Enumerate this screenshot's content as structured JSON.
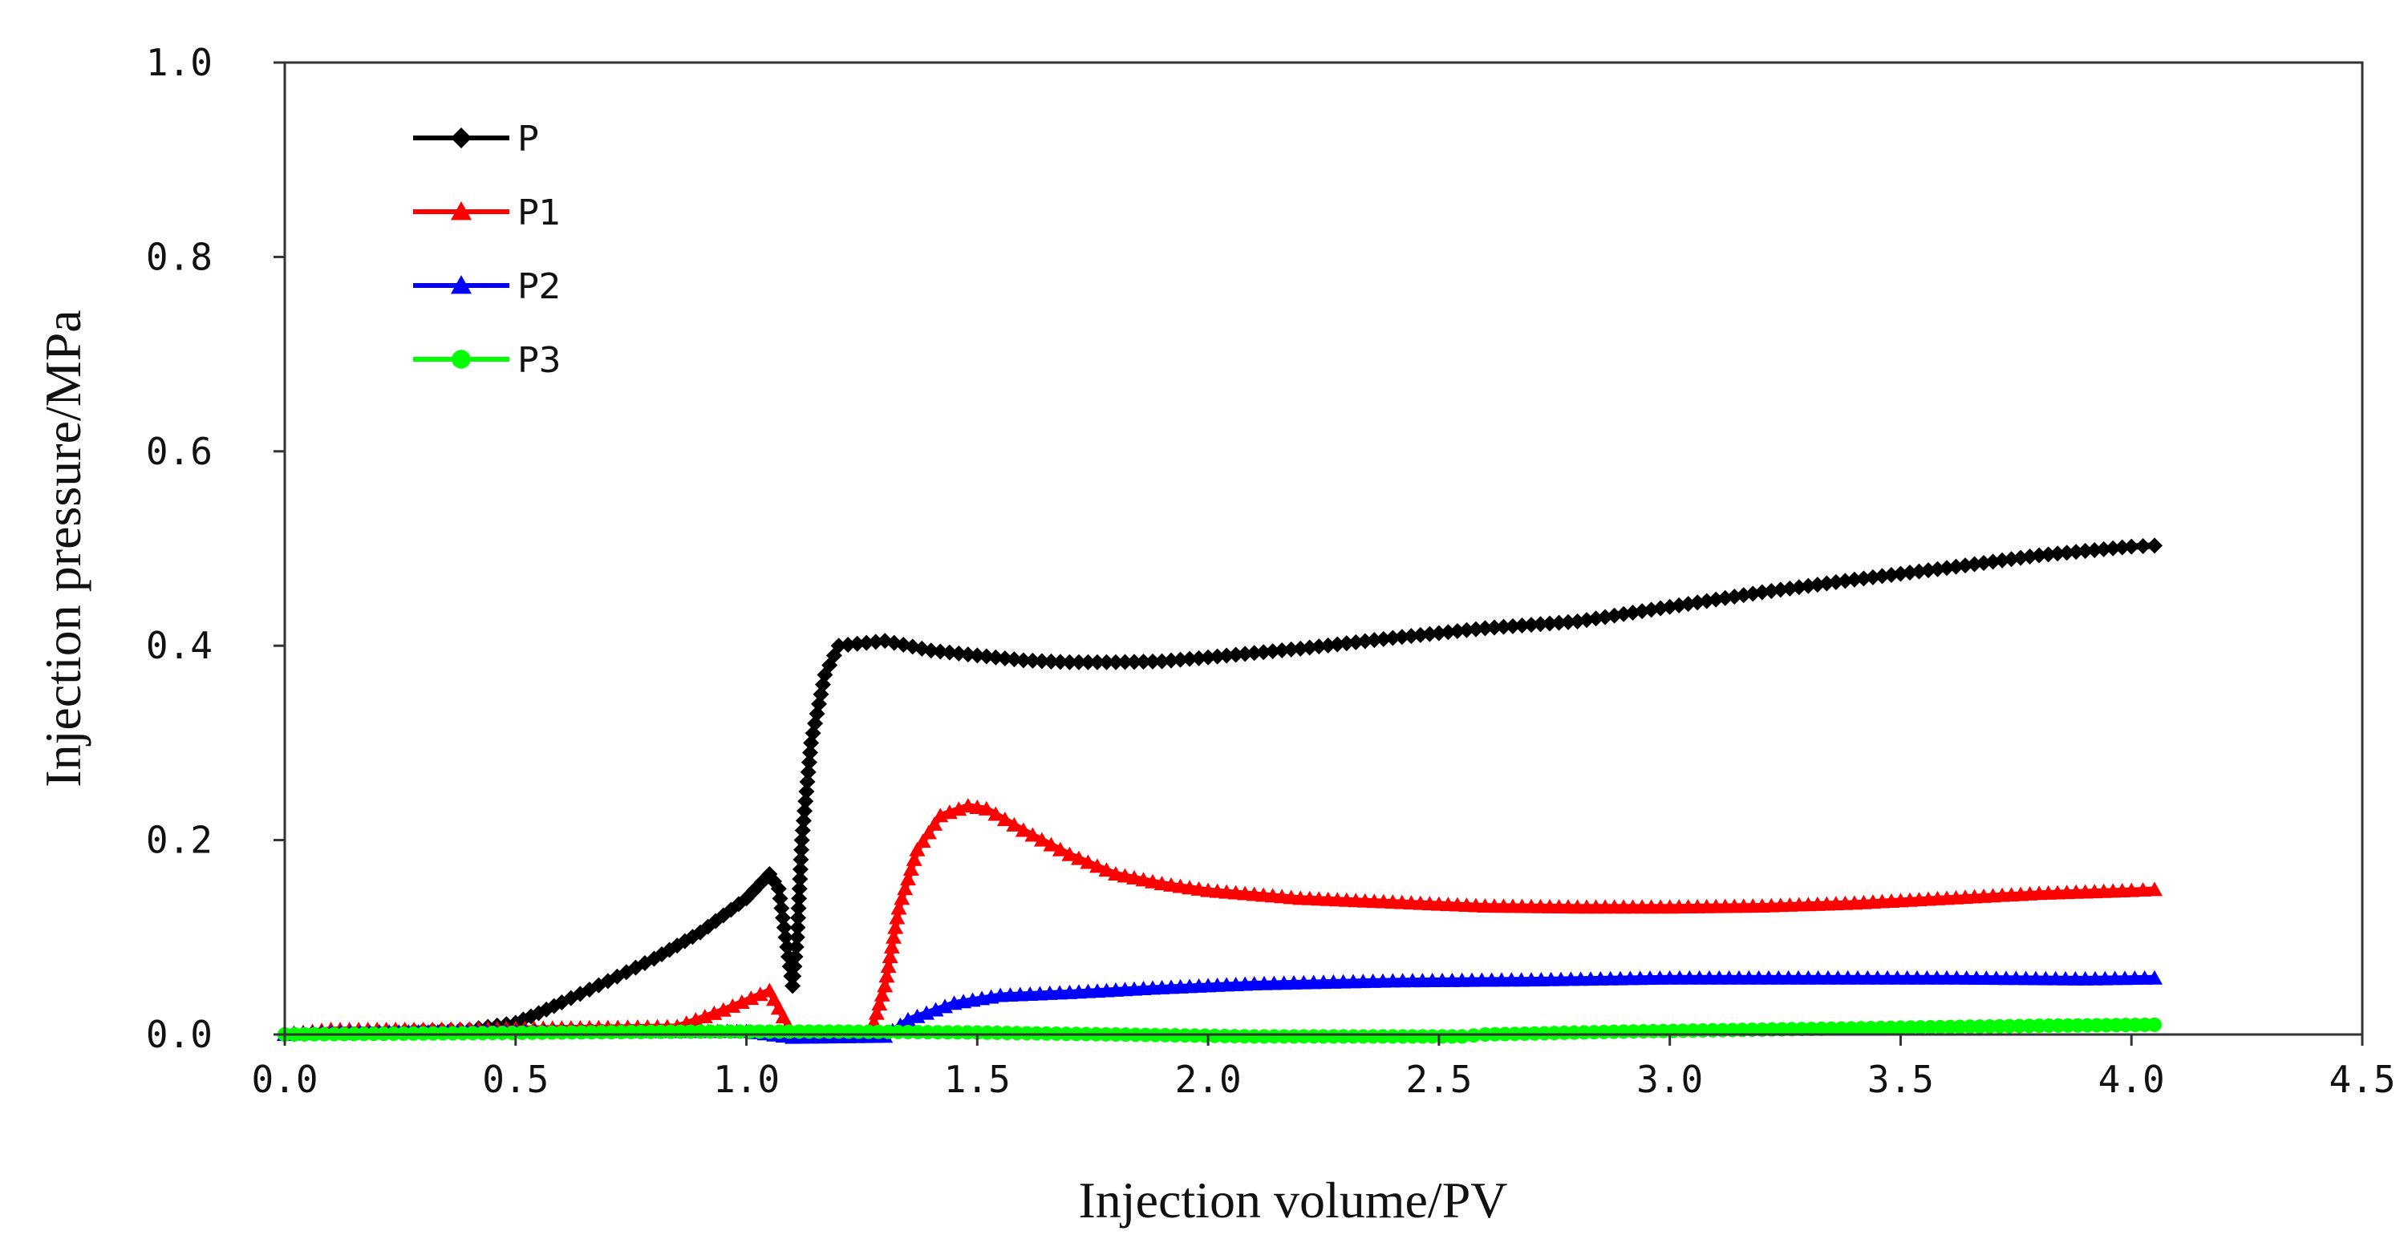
{
  "chart_data": {
    "type": "line",
    "title": "",
    "xlabel": "Injection volume/PV",
    "ylabel": "Injection pressure/MPa",
    "xlim": [
      0,
      4.5
    ],
    "ylim": [
      0,
      1.0
    ],
    "x_ticks": [
      "0.0",
      "0.5",
      "1.0",
      "1.5",
      "2.0",
      "2.5",
      "3.0",
      "3.5",
      "4.0",
      "4.5"
    ],
    "y_ticks": [
      "0.0",
      "0.2",
      "0.4",
      "0.6",
      "0.8",
      "1.0"
    ],
    "grid": false,
    "legend_position": "top-left",
    "series": [
      {
        "name": "P",
        "color": "#000000",
        "marker": "diamond",
        "points": [
          [
            0.0,
            0.0
          ],
          [
            0.1,
            0.002
          ],
          [
            0.2,
            0.003
          ],
          [
            0.3,
            0.004
          ],
          [
            0.4,
            0.005
          ],
          [
            0.5,
            0.012
          ],
          [
            0.55,
            0.022
          ],
          [
            0.6,
            0.033
          ],
          [
            0.7,
            0.055
          ],
          [
            0.8,
            0.078
          ],
          [
            0.9,
            0.105
          ],
          [
            1.0,
            0.14
          ],
          [
            1.05,
            0.165
          ],
          [
            1.07,
            0.15
          ],
          [
            1.1,
            0.05
          ],
          [
            1.11,
            0.1
          ],
          [
            1.12,
            0.2
          ],
          [
            1.14,
            0.3
          ],
          [
            1.17,
            0.37
          ],
          [
            1.2,
            0.4
          ],
          [
            1.3,
            0.405
          ],
          [
            1.4,
            0.395
          ],
          [
            1.5,
            0.39
          ],
          [
            1.6,
            0.385
          ],
          [
            1.7,
            0.383
          ],
          [
            1.8,
            0.383
          ],
          [
            1.9,
            0.384
          ],
          [
            2.0,
            0.388
          ],
          [
            2.2,
            0.397
          ],
          [
            2.4,
            0.408
          ],
          [
            2.6,
            0.418
          ],
          [
            2.8,
            0.425
          ],
          [
            3.0,
            0.44
          ],
          [
            3.2,
            0.455
          ],
          [
            3.4,
            0.468
          ],
          [
            3.6,
            0.48
          ],
          [
            3.8,
            0.493
          ],
          [
            4.0,
            0.502
          ],
          [
            4.05,
            0.503
          ]
        ]
      },
      {
        "name": "P1",
        "color": "#ff0000",
        "marker": "triangle",
        "points": [
          [
            0.0,
            0.0
          ],
          [
            0.1,
            0.005
          ],
          [
            0.3,
            0.005
          ],
          [
            0.5,
            0.006
          ],
          [
            0.7,
            0.007
          ],
          [
            0.85,
            0.008
          ],
          [
            0.95,
            0.025
          ],
          [
            1.05,
            0.045
          ],
          [
            1.1,
            0.0
          ],
          [
            1.2,
            0.0
          ],
          [
            1.27,
            0.003
          ],
          [
            1.3,
            0.05
          ],
          [
            1.33,
            0.13
          ],
          [
            1.37,
            0.19
          ],
          [
            1.42,
            0.225
          ],
          [
            1.48,
            0.235
          ],
          [
            1.52,
            0.232
          ],
          [
            1.6,
            0.21
          ],
          [
            1.7,
            0.185
          ],
          [
            1.8,
            0.165
          ],
          [
            1.9,
            0.155
          ],
          [
            2.0,
            0.148
          ],
          [
            2.2,
            0.14
          ],
          [
            2.4,
            0.136
          ],
          [
            2.6,
            0.132
          ],
          [
            2.8,
            0.131
          ],
          [
            3.0,
            0.131
          ],
          [
            3.2,
            0.132
          ],
          [
            3.4,
            0.135
          ],
          [
            3.6,
            0.14
          ],
          [
            3.8,
            0.145
          ],
          [
            4.0,
            0.148
          ],
          [
            4.05,
            0.149
          ]
        ]
      },
      {
        "name": "P2",
        "color": "#0000ff",
        "marker": "triangle",
        "points": [
          [
            0.0,
            0.0
          ],
          [
            0.1,
            0.002
          ],
          [
            0.5,
            0.003
          ],
          [
            1.0,
            0.003
          ],
          [
            1.1,
            -0.003
          ],
          [
            1.3,
            -0.002
          ],
          [
            1.35,
            0.015
          ],
          [
            1.45,
            0.032
          ],
          [
            1.55,
            0.04
          ],
          [
            1.7,
            0.043
          ],
          [
            1.9,
            0.048
          ],
          [
            2.1,
            0.052
          ],
          [
            2.4,
            0.055
          ],
          [
            2.7,
            0.056
          ],
          [
            3.0,
            0.058
          ],
          [
            3.3,
            0.058
          ],
          [
            3.6,
            0.058
          ],
          [
            3.9,
            0.057
          ],
          [
            4.05,
            0.058
          ]
        ]
      },
      {
        "name": "P3",
        "color": "#00ff00",
        "marker": "circle",
        "points": [
          [
            0.0,
            0.0
          ],
          [
            0.3,
            0.001
          ],
          [
            0.6,
            0.002
          ],
          [
            0.9,
            0.003
          ],
          [
            1.2,
            0.003
          ],
          [
            1.5,
            0.002
          ],
          [
            1.8,
            0.0
          ],
          [
            2.1,
            -0.002
          ],
          [
            2.4,
            -0.002
          ],
          [
            2.55,
            -0.002
          ],
          [
            2.6,
            0.0
          ],
          [
            2.9,
            0.003
          ],
          [
            3.2,
            0.005
          ],
          [
            3.5,
            0.007
          ],
          [
            3.8,
            0.009
          ],
          [
            4.05,
            0.01
          ]
        ]
      }
    ]
  }
}
